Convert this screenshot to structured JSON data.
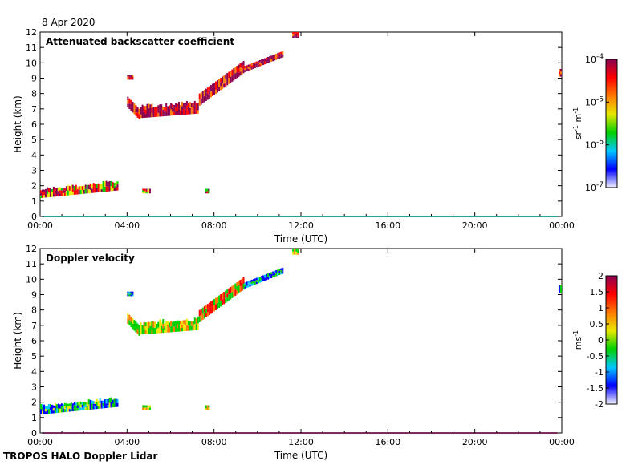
{
  "date_label": "8 Apr 2020",
  "footer": "TROPOS HALO Doppler Lidar",
  "colors": {
    "rainbow": [
      "#f2f2ff",
      "#0000ff",
      "#00c8ff",
      "#00d000",
      "#e8e800",
      "#ff7a00",
      "#ff0000",
      "#8b0050"
    ]
  },
  "chart_data": [
    {
      "type": "heatmap",
      "title": "Attenuated backscatter coefficient",
      "xlabel": "Time (UTC)",
      "ylabel": "Height (km)",
      "x_ticks": [
        "00:00",
        "04:00",
        "08:00",
        "12:00",
        "16:00",
        "20:00",
        "00:00"
      ],
      "xlim_hours": [
        0,
        24
      ],
      "y_ticks": [
        "0",
        "1",
        "2",
        "3",
        "4",
        "5",
        "6",
        "7",
        "8",
        "9",
        "10",
        "11",
        "12"
      ],
      "ylim": [
        0,
        12
      ],
      "colorbar": {
        "unit_label": "sr-1 m-1",
        "scale": "log",
        "range": [
          1e-07,
          0.0001
        ],
        "ticks": [
          "10-4",
          "10-5",
          "10-6",
          "10-7"
        ]
      },
      "grid": false
    },
    {
      "type": "heatmap",
      "title": "Doppler velocity",
      "xlabel": "Time (UTC)",
      "ylabel": "Height (km)",
      "x_ticks": [
        "00:00",
        "04:00",
        "08:00",
        "12:00",
        "16:00",
        "20:00",
        "00:00"
      ],
      "xlim_hours": [
        0,
        24
      ],
      "y_ticks": [
        "0",
        "1",
        "2",
        "3",
        "4",
        "5",
        "6",
        "7",
        "8",
        "9",
        "10",
        "11",
        "12"
      ],
      "ylim": [
        0,
        12
      ],
      "colorbar": {
        "unit_label": "m s-1",
        "scale": "linear",
        "range": [
          -2,
          2
        ],
        "ticks": [
          "2",
          "1.5",
          "1",
          "0.5",
          "0",
          "-0.5",
          "-1",
          "-1.5",
          "-2"
        ]
      },
      "grid": false
    }
  ],
  "echo_features": [
    {
      "t0": 0.0,
      "t1": 3.6,
      "h0": 1.2,
      "h1": 2.1,
      "band": "low-boundary-layer"
    },
    {
      "t0": 4.0,
      "t1": 4.6,
      "h0": 6.3,
      "h1": 7.8,
      "band": "cirrus-descending"
    },
    {
      "t0": 4.6,
      "t1": 7.3,
      "h0": 6.4,
      "h1": 7.4,
      "band": "cirrus-base"
    },
    {
      "t0": 7.3,
      "t1": 9.4,
      "h0": 7.2,
      "h1": 10.2,
      "band": "cirrus-rising"
    },
    {
      "t0": 9.4,
      "t1": 11.2,
      "h0": 9.4,
      "h1": 10.9,
      "band": "cirrus-top"
    },
    {
      "t0": 11.6,
      "t1": 11.9,
      "h0": 11.6,
      "h1": 12.0,
      "band": "cirrus-top-2"
    },
    {
      "t0": 4.0,
      "t1": 4.3,
      "h0": 8.9,
      "h1": 9.2,
      "band": "upper-patch"
    },
    {
      "t0": 4.7,
      "t1": 5.1,
      "h0": 1.5,
      "h1": 1.8,
      "band": "low-patch"
    },
    {
      "t0": 7.6,
      "t1": 7.8,
      "h0": 1.5,
      "h1": 1.8,
      "band": "low-speck"
    },
    {
      "t0": 23.85,
      "t1": 24.0,
      "h0": 9.1,
      "h1": 9.6,
      "band": "right-edge-patch"
    }
  ]
}
